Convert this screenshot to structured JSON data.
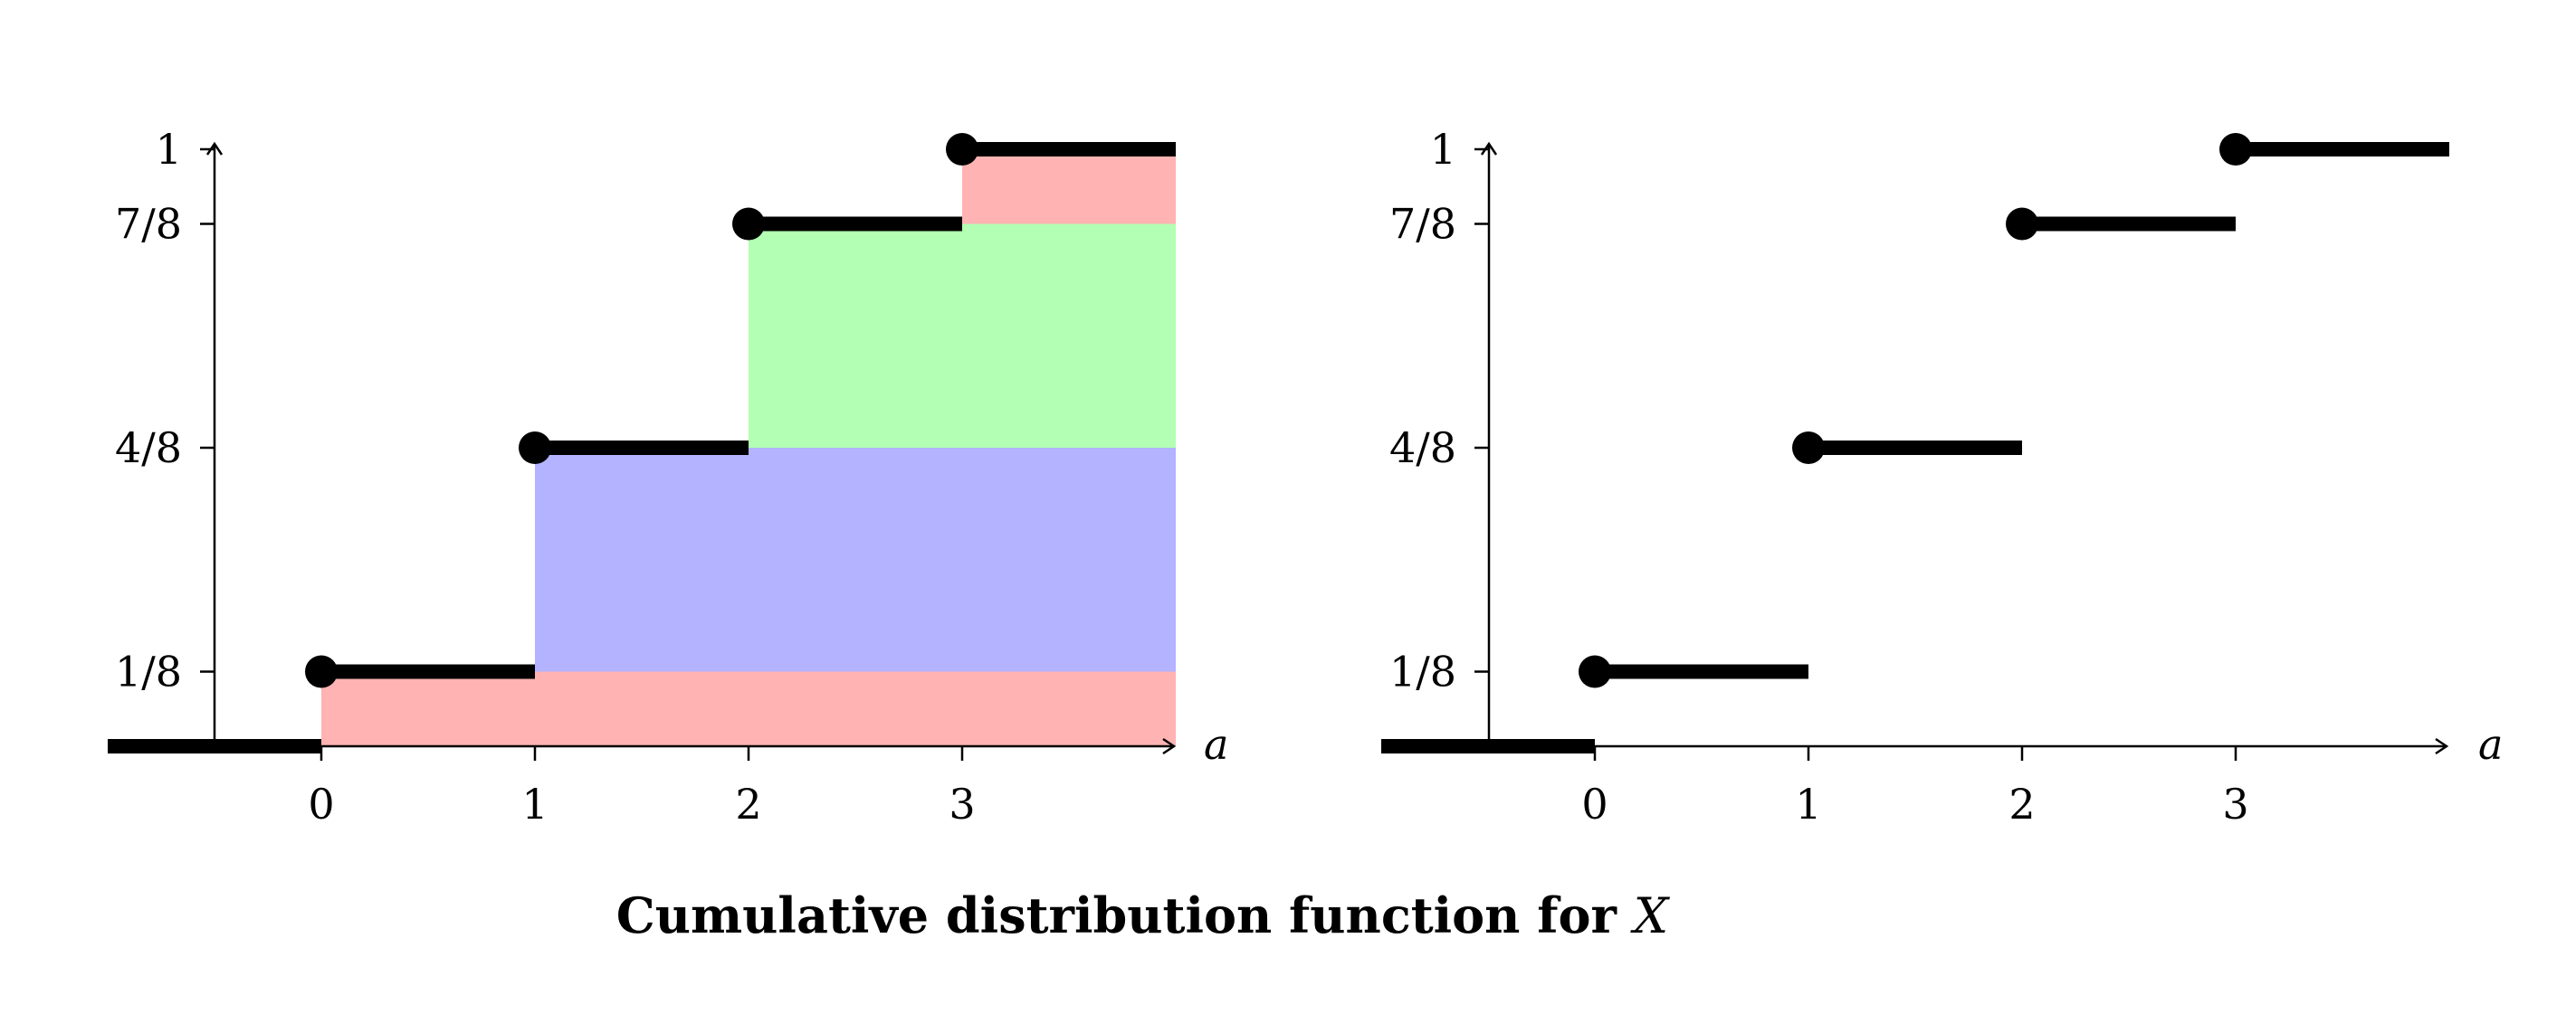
{
  "caption": {
    "text": "Cumulative distribution function for",
    "variable": "X"
  },
  "colors": {
    "line": "#000000",
    "band_red": "#ffb3b3",
    "band_blue": "#b3b3ff",
    "band_green": "#b3ffb3"
  },
  "chart_data": [
    {
      "type": "step",
      "xlabel": "a",
      "ylabel": "",
      "xlim": [
        -1,
        4
      ],
      "ylim": [
        0,
        1
      ],
      "xticks": [
        "0",
        "1",
        "2",
        "3"
      ],
      "yticks": [
        "1/8",
        "4/8",
        "7/8",
        "1"
      ],
      "steps": [
        {
          "x_start": -1,
          "x_end": 0,
          "y": 0,
          "closed_dot": false
        },
        {
          "x_start": 0,
          "x_end": 1,
          "y": 0.125,
          "closed_dot": true
        },
        {
          "x_start": 1,
          "x_end": 2,
          "y": 0.5,
          "closed_dot": true
        },
        {
          "x_start": 2,
          "x_end": 3,
          "y": 0.875,
          "closed_dot": true
        },
        {
          "x_start": 3,
          "x_end": 4,
          "y": 1,
          "closed_dot": true
        }
      ],
      "bands": [
        {
          "x_start": 0,
          "x_end": 4,
          "y_start": 0,
          "y_end": 0.125,
          "color": "band_red"
        },
        {
          "x_start": 1,
          "x_end": 4,
          "y_start": 0.125,
          "y_end": 0.5,
          "color": "band_blue"
        },
        {
          "x_start": 2,
          "x_end": 4,
          "y_start": 0.5,
          "y_end": 0.875,
          "color": "band_green"
        },
        {
          "x_start": 3,
          "x_end": 4,
          "y_start": 0.875,
          "y_end": 1,
          "color": "band_red"
        }
      ]
    },
    {
      "type": "step",
      "xlabel": "a",
      "ylabel": "",
      "xlim": [
        -1,
        4
      ],
      "ylim": [
        0,
        1
      ],
      "xticks": [
        "0",
        "1",
        "2",
        "3"
      ],
      "yticks": [
        "1/8",
        "4/8",
        "7/8",
        "1"
      ],
      "steps": [
        {
          "x_start": -1,
          "x_end": 0,
          "y": 0,
          "closed_dot": false
        },
        {
          "x_start": 0,
          "x_end": 1,
          "y": 0.125,
          "closed_dot": true
        },
        {
          "x_start": 1,
          "x_end": 2,
          "y": 0.5,
          "closed_dot": true
        },
        {
          "x_start": 2,
          "x_end": 3,
          "y": 0.875,
          "closed_dot": true
        },
        {
          "x_start": 3,
          "x_end": 4,
          "y": 1,
          "closed_dot": true
        }
      ],
      "bands": []
    }
  ]
}
